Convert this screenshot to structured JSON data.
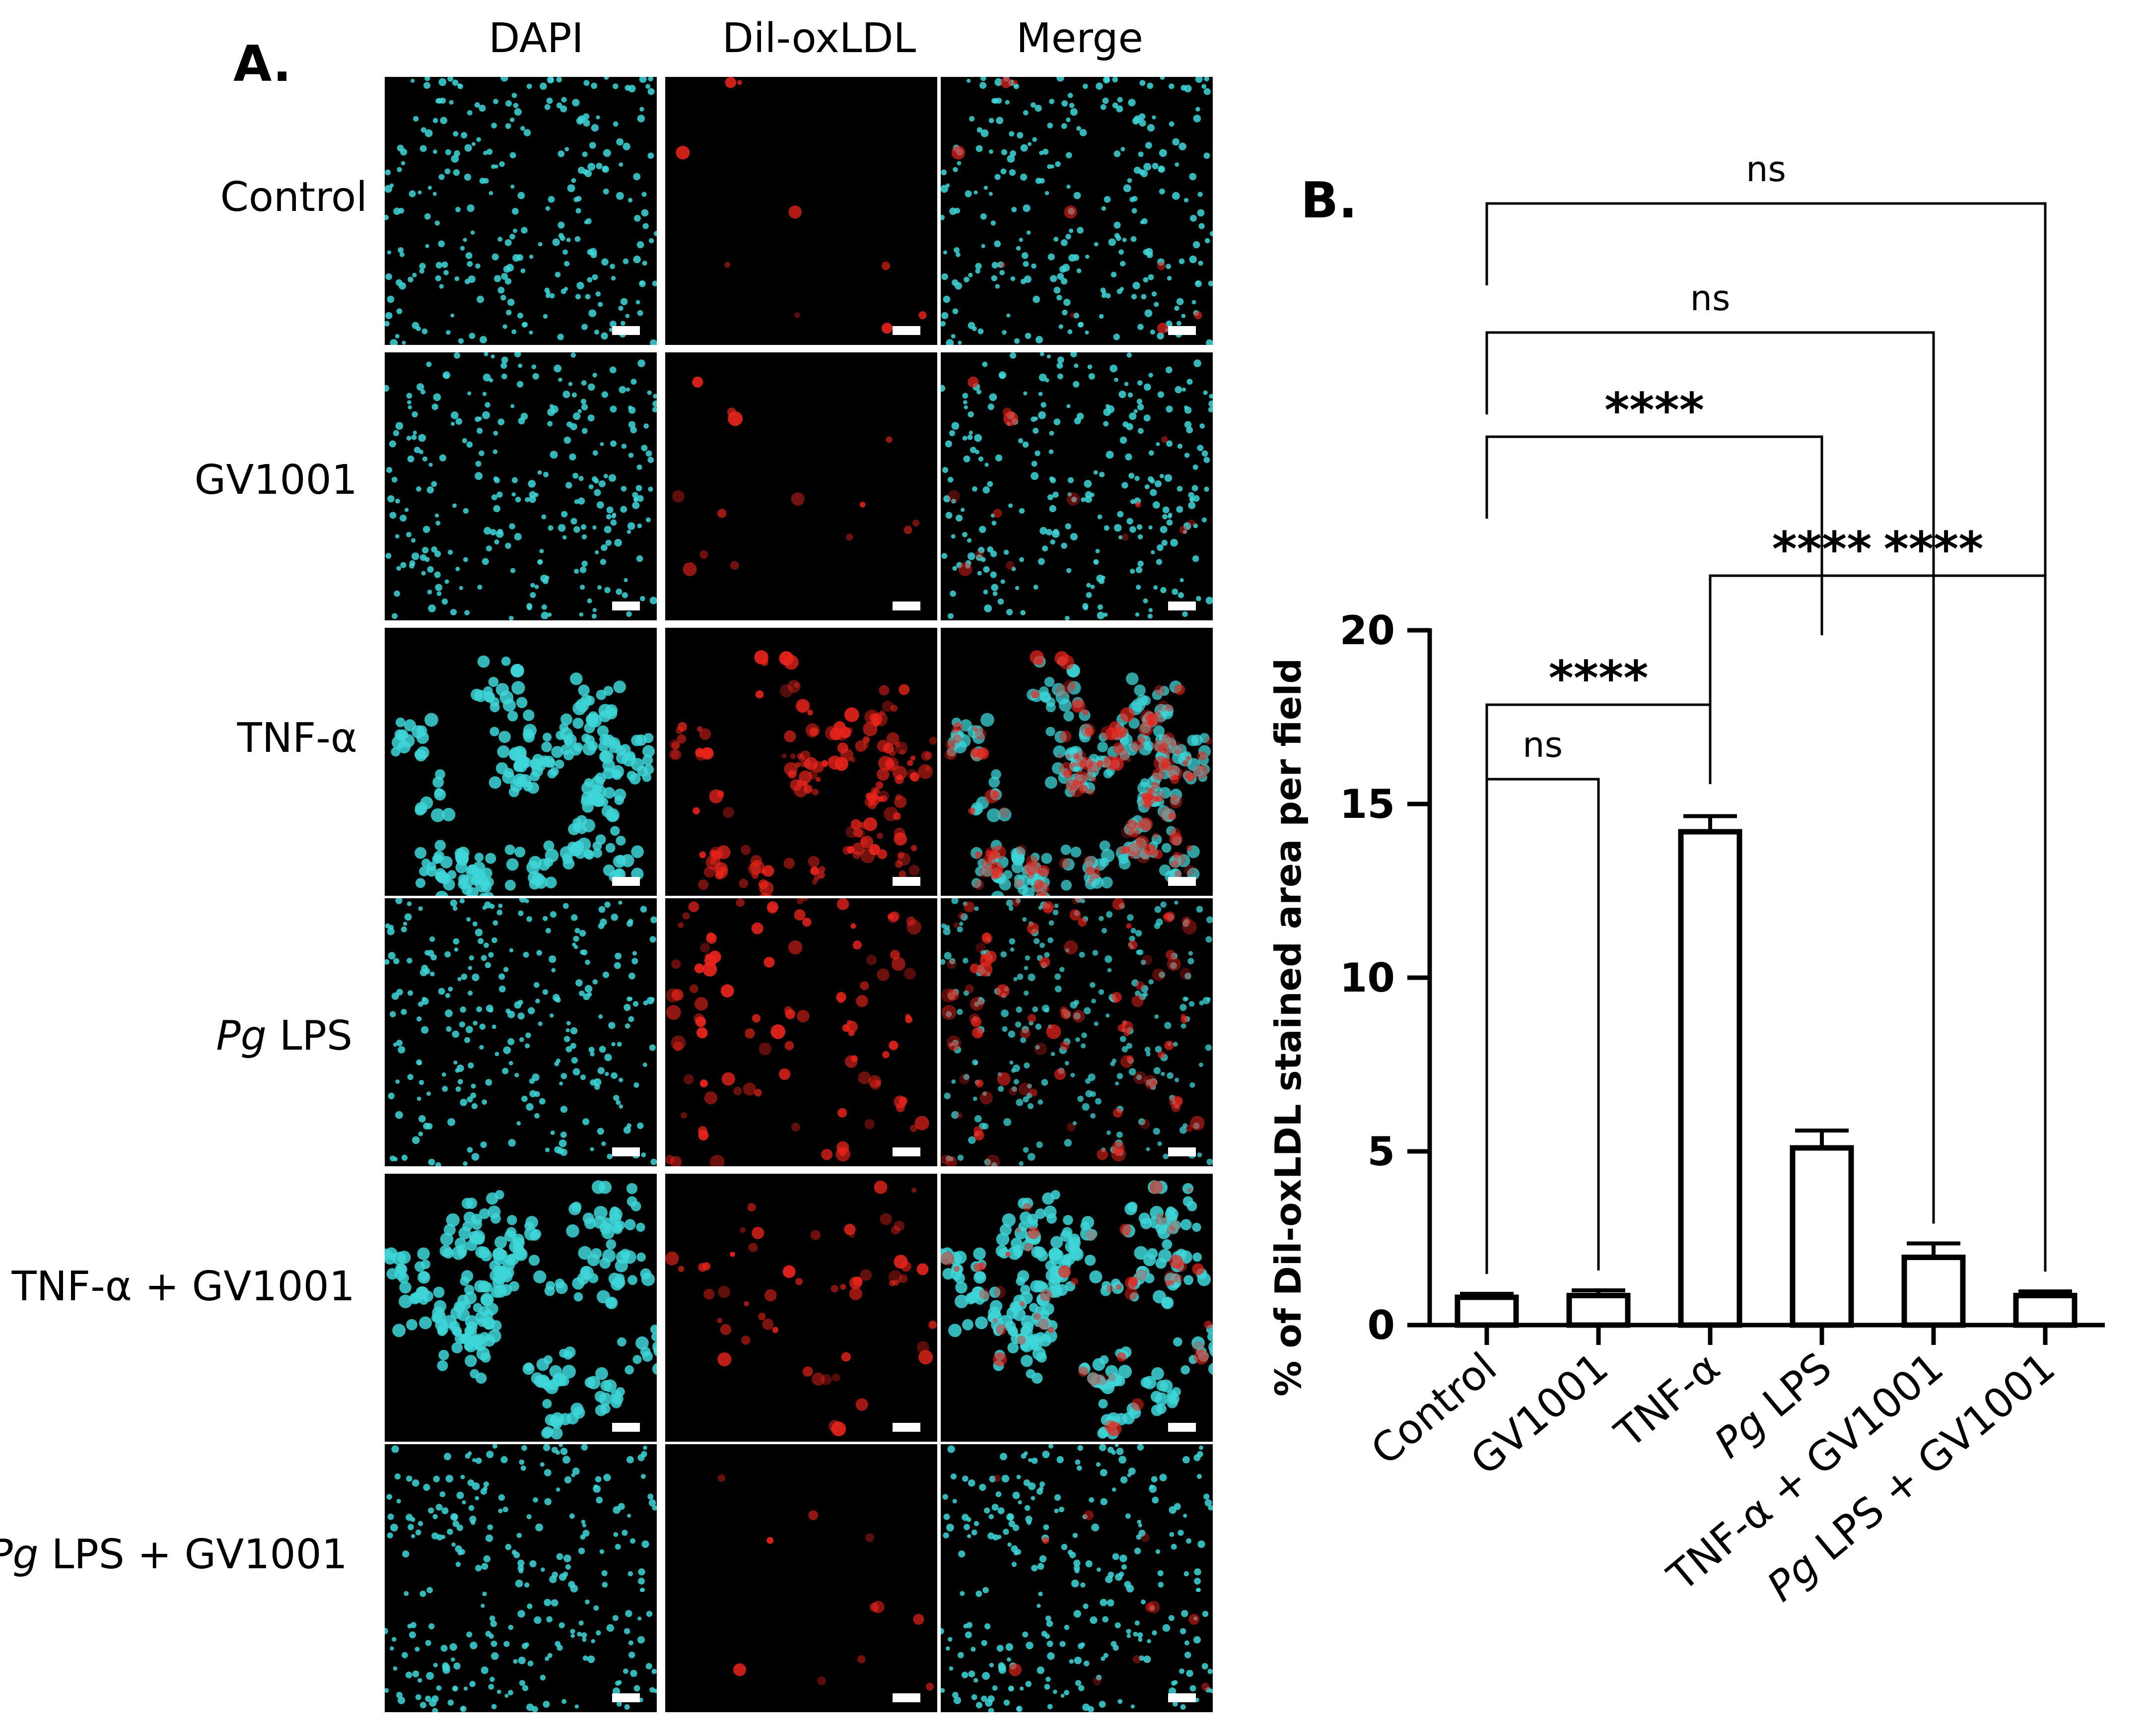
{
  "panel_a": {
    "letter": "A.",
    "columns": [
      "DAPI",
      "Dil-oxLDL",
      "Merge"
    ],
    "rows": [
      {
        "italic": "",
        "rest": "Control",
        "level": 0.05
      },
      {
        "italic": "",
        "rest": "GV1001",
        "level": 0.08
      },
      {
        "italic": "",
        "rest": "TNF-α",
        "level": 1.0
      },
      {
        "italic": "Pg",
        "rest": " LPS",
        "level": 0.55
      },
      {
        "italic": "",
        "rest": "TNF-α + GV1001",
        "level": 0.3
      },
      {
        "italic": "Pg",
        "rest": " LPS + GV1001",
        "level": 0.06
      }
    ],
    "colors": {
      "dapi": "#3ed6d8",
      "dil": "#e8241c",
      "background": "#000000",
      "scale_bar": "#ffffff"
    }
  },
  "panel_b": {
    "letter": "B."
  },
  "chart_data": {
    "type": "bar",
    "categories": [
      "Control",
      "GV1001",
      "TNF-α",
      "Pg LPS",
      "TNF-α + GV1001",
      "Pg LPS + GV1001"
    ],
    "category_italic_prefix": [
      "",
      "",
      "",
      "Pg",
      "",
      "Pg"
    ],
    "category_rest": [
      "Control",
      "GV1001",
      "TNF-α",
      " LPS",
      "TNF-α + GV1001",
      " LPS + GV1001"
    ],
    "values": [
      0.8,
      0.85,
      14.2,
      5.1,
      1.95,
      0.85
    ],
    "errors": [
      0.1,
      0.15,
      0.45,
      0.5,
      0.4,
      0.12
    ],
    "title": "",
    "xlabel": "",
    "ylabel": "% of Dil-oxLDL stained area per field",
    "ylim": [
      0,
      20
    ],
    "yticks": [
      0,
      5,
      10,
      15,
      20
    ],
    "bar_fill": "#ffffff",
    "bar_stroke": "#000000",
    "comparisons": [
      {
        "from": 0,
        "to": 1,
        "label": "ns"
      },
      {
        "from": 0,
        "to": 2,
        "label": "****"
      },
      {
        "from": 2,
        "to": 4,
        "label": "****"
      },
      {
        "from": 3,
        "to": 5,
        "label": "****"
      },
      {
        "from": 0,
        "to": 3,
        "label": "****"
      },
      {
        "from": 0,
        "to": 4,
        "label": "ns"
      },
      {
        "from": 0,
        "to": 5,
        "label": "ns"
      }
    ]
  }
}
